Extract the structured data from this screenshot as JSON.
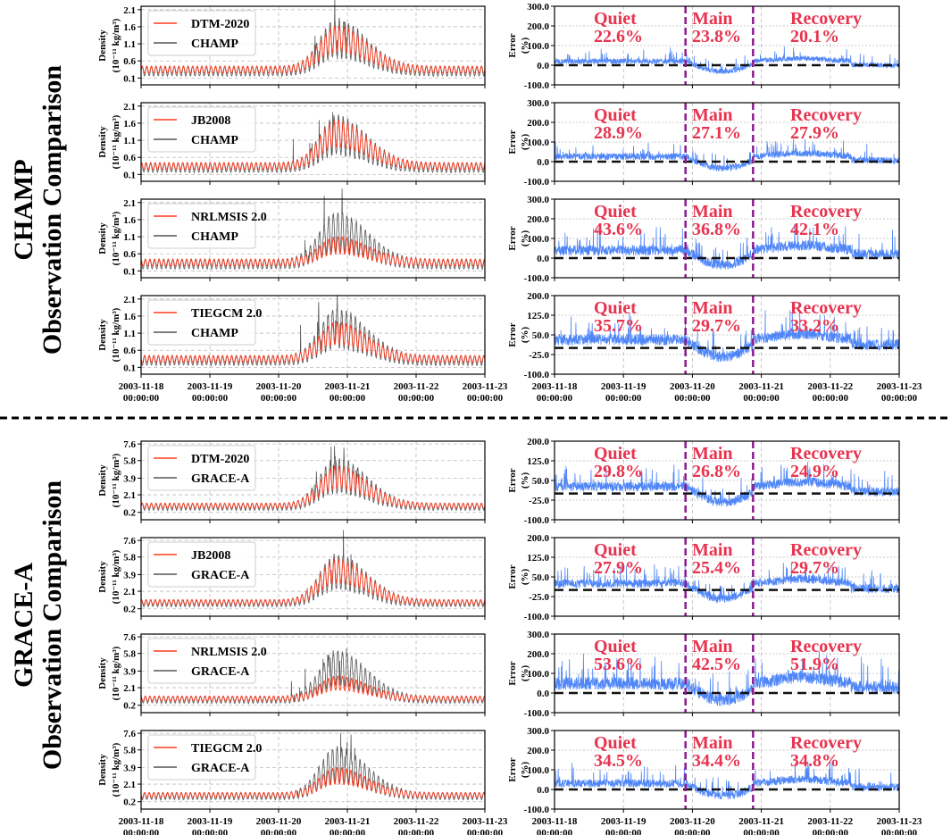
{
  "chart_data": {
    "type": "line",
    "x_ticks": [
      [
        "2003-11-18",
        "00:00:00"
      ],
      [
        "2003-11-19",
        "00:00:00"
      ],
      [
        "2003-11-20",
        "00:00:00"
      ],
      [
        "2003-11-21",
        "00:00:00"
      ],
      [
        "2003-11-22",
        "00:00:00"
      ],
      [
        "2003-11-23",
        "00:00:00"
      ]
    ],
    "xlim_days": [
      0,
      5
    ],
    "main_phase_days": [
      1.9,
      2.88
    ],
    "density_ylabel": "Density",
    "density_units": "(10⁻¹¹ kg/m³)",
    "error_ylabel": "Error",
    "error_units": "(%)",
    "phase_labels": {
      "quiet": "Quiet",
      "main": "Main",
      "recovery": "Recovery"
    },
    "colors": {
      "model": "#ff3b1f",
      "obs": "#555555",
      "error": "#4f86f7",
      "phase_line": "#8b1a8b",
      "phase_text": "#e8334f",
      "zero": "#111111"
    },
    "groups": [
      {
        "title1": "CHAMP",
        "title2": "Observation Comparison",
        "satellite": "CHAMP",
        "density_ticks": [
          "0.1",
          "0.6",
          "1.1",
          "1.6",
          "2.1"
        ],
        "density_ylim": [
          -0.1,
          2.2
        ],
        "base": 0.3,
        "peak": 1.25,
        "rows": [
          {
            "model": "DTM-2020",
            "error_ticks": [
              "300.0",
              "200.0",
              "100.0",
              "0.0",
              "-100.0"
            ],
            "error_ylim": [
              -100,
              300
            ],
            "quiet": "22.6%",
            "main": "23.8%",
            "recovery": "20.1%",
            "model_peak": 1.25
          },
          {
            "model": "JB2008",
            "error_ticks": [
              "300.0",
              "200.0",
              "100.0",
              "0.0",
              "-100.0"
            ],
            "error_ylim": [
              -100,
              300
            ],
            "quiet": "28.9%",
            "main": "27.1%",
            "recovery": "27.9%",
            "model_peak": 1.3
          },
          {
            "model": "NRLMSIS 2.0",
            "error_ticks": [
              "300.0",
              "200.0",
              "100.0",
              "0.0",
              "-100.0"
            ],
            "error_ylim": [
              -100,
              300
            ],
            "quiet": "43.6%",
            "main": "36.8%",
            "recovery": "42.1%",
            "model_peak": 0.85
          },
          {
            "model": "TIEGCM 2.0",
            "error_ticks": [
              "200.0",
              "125.0",
              "50.0",
              "-25.0",
              "-100.0"
            ],
            "error_ylim": [
              -100,
              200
            ],
            "quiet": "35.7%",
            "main": "29.7%",
            "recovery": "33.2%",
            "model_peak": 1.1
          }
        ]
      },
      {
        "title1": "GRACE-A",
        "title2": "Observation Comparison",
        "satellite": "GRACE-A",
        "density_ticks": [
          "0.2",
          "2.1",
          "3.9",
          "5.8",
          "7.6"
        ],
        "density_ylim": [
          -0.6,
          7.9
        ],
        "base": 0.8,
        "peak": 4.2,
        "rows": [
          {
            "model": "DTM-2020",
            "error_ticks": [
              "200.0",
              "125.0",
              "50.0",
              "-25.0",
              "-100.0"
            ],
            "error_ylim": [
              -100,
              200
            ],
            "quiet": "29.8%",
            "main": "26.8%",
            "recovery": "24.9%",
            "model_peak": 4.0
          },
          {
            "model": "JB2008",
            "error_ticks": [
              "200.0",
              "125.0",
              "50.0",
              "-25.0",
              "-100.0"
            ],
            "error_ylim": [
              -100,
              200
            ],
            "quiet": "27.9%",
            "main": "25.4%",
            "recovery": "29.7%",
            "model_peak": 4.3
          },
          {
            "model": "NRLMSIS 2.0",
            "error_ticks": [
              "300.0",
              "200.0",
              "100.0",
              "0.0",
              "-100.0"
            ],
            "error_ylim": [
              -100,
              300
            ],
            "quiet": "53.6%",
            "main": "42.5%",
            "recovery": "51.9%",
            "model_peak": 2.6
          },
          {
            "model": "TIEGCM 2.0",
            "error_ticks": [
              "300.0",
              "200.0",
              "100.0",
              "0.0",
              "-100.0"
            ],
            "error_ylim": [
              -100,
              300
            ],
            "quiet": "34.5%",
            "main": "34.4%",
            "recovery": "34.8%",
            "model_peak": 3.0
          }
        ]
      }
    ]
  }
}
